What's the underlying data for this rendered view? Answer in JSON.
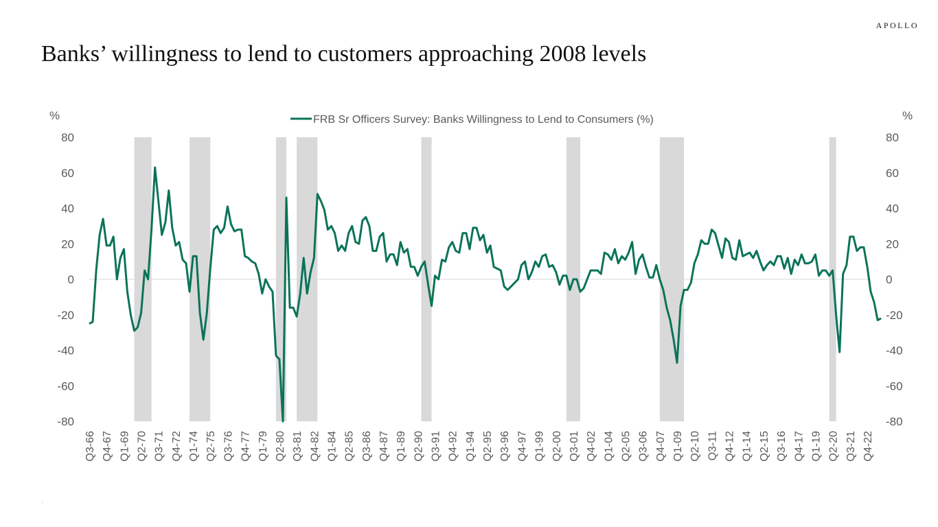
{
  "header": {
    "brand": "APOLLO",
    "title": "Banks’ willingness to lend to customers approaching 2008 levels"
  },
  "footnote": ".",
  "colors": {
    "series": "#0a7358",
    "recession": "#d9d9d9",
    "zero_line": "#d9d9d9",
    "text": "#595959"
  },
  "chart_data": {
    "type": "line",
    "title": "Banks’ willingness to lend to customers approaching 2008 levels",
    "y_unit_left": "%",
    "y_unit_right": "%",
    "ylim": [
      -80,
      80
    ],
    "yticks": [
      80,
      60,
      40,
      20,
      0,
      -20,
      -40,
      -60,
      -80
    ],
    "grid": false,
    "legend": "top-center",
    "xlim": [
      "Q3-66",
      "Q1-23"
    ],
    "xtick_labels": [
      "Q3-66",
      "Q4-67",
      "Q1-69",
      "Q2-70",
      "Q3-71",
      "Q4-72",
      "Q1-74",
      "Q2-75",
      "Q3-76",
      "Q4-77",
      "Q1-79",
      "Q2-80",
      "Q3-81",
      "Q4-82",
      "Q1-84",
      "Q2-85",
      "Q3-86",
      "Q4-87",
      "Q1-89",
      "Q2-90",
      "Q3-91",
      "Q4-92",
      "Q1-94",
      "Q2-95",
      "Q3-96",
      "Q4-97",
      "Q1-99",
      "Q2-00",
      "Q3-01",
      "Q4-02",
      "Q1-04",
      "Q2-05",
      "Q3-06",
      "Q4-07",
      "Q1-09",
      "Q2-10",
      "Q3-11",
      "Q4-12",
      "Q1-14",
      "Q2-15",
      "Q3-16",
      "Q4-17",
      "Q1-19",
      "Q2-20",
      "Q3-21",
      "Q4-22"
    ],
    "recession_shading": [
      [
        "Q4-69",
        "Q4-70"
      ],
      [
        "Q4-73",
        "Q1-75"
      ],
      [
        "Q1-80",
        "Q3-80"
      ],
      [
        "Q3-81",
        "Q4-82"
      ],
      [
        "Q3-90",
        "Q1-91"
      ],
      [
        "Q1-01",
        "Q4-01"
      ],
      [
        "Q4-07",
        "Q2-09"
      ],
      [
        "Q1-20",
        "Q2-20"
      ]
    ],
    "series": [
      {
        "name": "FRB Sr Officers Survey: Banks Willingness to Lend to Consumers (%)",
        "points": [
          [
            "Q3-66",
            -25
          ],
          [
            "Q4-66",
            -24
          ],
          [
            "Q1-67",
            5
          ],
          [
            "Q2-67",
            25
          ],
          [
            "Q3-67",
            34
          ],
          [
            "Q4-67",
            19
          ],
          [
            "Q1-68",
            19
          ],
          [
            "Q2-68",
            24
          ],
          [
            "Q3-68",
            0
          ],
          [
            "Q4-68",
            12
          ],
          [
            "Q1-69",
            17
          ],
          [
            "Q2-69",
            -7
          ],
          [
            "Q3-69",
            -20
          ],
          [
            "Q4-69",
            -29
          ],
          [
            "Q1-70",
            -27
          ],
          [
            "Q2-70",
            -19
          ],
          [
            "Q3-70",
            5
          ],
          [
            "Q4-70",
            0
          ],
          [
            "Q1-71",
            28
          ],
          [
            "Q2-71",
            63
          ],
          [
            "Q3-71",
            44
          ],
          [
            "Q4-71",
            25
          ],
          [
            "Q1-72",
            32
          ],
          [
            "Q2-72",
            50
          ],
          [
            "Q3-72",
            29
          ],
          [
            "Q4-72",
            19
          ],
          [
            "Q1-73",
            21
          ],
          [
            "Q2-73",
            11
          ],
          [
            "Q3-73",
            9
          ],
          [
            "Q4-73",
            -7
          ],
          [
            "Q1-74",
            13
          ],
          [
            "Q2-74",
            13
          ],
          [
            "Q3-74",
            -19
          ],
          [
            "Q4-74",
            -34
          ],
          [
            "Q1-75",
            -19
          ],
          [
            "Q2-75",
            6
          ],
          [
            "Q3-75",
            28
          ],
          [
            "Q4-75",
            30
          ],
          [
            "Q1-76",
            26
          ],
          [
            "Q2-76",
            29
          ],
          [
            "Q3-76",
            41
          ],
          [
            "Q4-76",
            31
          ],
          [
            "Q1-77",
            27
          ],
          [
            "Q2-77",
            28
          ],
          [
            "Q3-77",
            28
          ],
          [
            "Q4-77",
            13
          ],
          [
            "Q1-78",
            12
          ],
          [
            "Q2-78",
            10
          ],
          [
            "Q3-78",
            9
          ],
          [
            "Q4-78",
            3
          ],
          [
            "Q1-79",
            -8
          ],
          [
            "Q2-79",
            0
          ],
          [
            "Q3-79",
            -4
          ],
          [
            "Q4-79",
            -7
          ],
          [
            "Q1-80",
            -43
          ],
          [
            "Q2-80",
            -45
          ],
          [
            "Q3-80",
            -80
          ],
          [
            "Q4-80",
            46
          ],
          [
            "Q1-81",
            -16
          ],
          [
            "Q2-81",
            -16
          ],
          [
            "Q3-81",
            -21
          ],
          [
            "Q4-81",
            -8
          ],
          [
            "Q1-82",
            12
          ],
          [
            "Q2-82",
            -8
          ],
          [
            "Q3-82",
            4
          ],
          [
            "Q4-82",
            12
          ],
          [
            "Q1-83",
            48
          ],
          [
            "Q2-83",
            44
          ],
          [
            "Q3-83",
            39
          ],
          [
            "Q4-83",
            28
          ],
          [
            "Q1-84",
            30
          ],
          [
            "Q2-84",
            26
          ],
          [
            "Q3-84",
            16
          ],
          [
            "Q4-84",
            19
          ],
          [
            "Q1-85",
            16
          ],
          [
            "Q2-85",
            26
          ],
          [
            "Q3-85",
            30
          ],
          [
            "Q4-85",
            21
          ],
          [
            "Q1-86",
            20
          ],
          [
            "Q2-86",
            33
          ],
          [
            "Q3-86",
            35
          ],
          [
            "Q4-86",
            30
          ],
          [
            "Q1-87",
            16
          ],
          [
            "Q2-87",
            16
          ],
          [
            "Q3-87",
            24
          ],
          [
            "Q4-87",
            26
          ],
          [
            "Q1-88",
            10
          ],
          [
            "Q2-88",
            14
          ],
          [
            "Q3-88",
            14
          ],
          [
            "Q4-88",
            8
          ],
          [
            "Q1-89",
            21
          ],
          [
            "Q2-89",
            15
          ],
          [
            "Q3-89",
            17
          ],
          [
            "Q4-89",
            7
          ],
          [
            "Q1-90",
            7
          ],
          [
            "Q2-90",
            2
          ],
          [
            "Q3-90",
            7
          ],
          [
            "Q4-90",
            10
          ],
          [
            "Q1-91",
            -3
          ],
          [
            "Q2-91",
            -15
          ],
          [
            "Q3-91",
            2
          ],
          [
            "Q4-91",
            0
          ],
          [
            "Q1-92",
            11
          ],
          [
            "Q2-92",
            10
          ],
          [
            "Q3-92",
            18
          ],
          [
            "Q4-92",
            21
          ],
          [
            "Q1-93",
            16
          ],
          [
            "Q2-93",
            15
          ],
          [
            "Q3-93",
            26
          ],
          [
            "Q4-93",
            26
          ],
          [
            "Q1-94",
            17
          ],
          [
            "Q2-94",
            29
          ],
          [
            "Q3-94",
            29
          ],
          [
            "Q4-94",
            22
          ],
          [
            "Q1-95",
            25
          ],
          [
            "Q2-95",
            15
          ],
          [
            "Q3-95",
            19
          ],
          [
            "Q4-95",
            7
          ],
          [
            "Q1-96",
            6
          ],
          [
            "Q2-96",
            5
          ],
          [
            "Q3-96",
            -4
          ],
          [
            "Q4-96",
            -6
          ],
          [
            "Q1-97",
            -4
          ],
          [
            "Q2-97",
            -2
          ],
          [
            "Q3-97",
            0
          ],
          [
            "Q4-97",
            8
          ],
          [
            "Q1-98",
            10
          ],
          [
            "Q2-98",
            0
          ],
          [
            "Q3-98",
            4
          ],
          [
            "Q4-98",
            10
          ],
          [
            "Q1-99",
            7
          ],
          [
            "Q2-99",
            13
          ],
          [
            "Q3-99",
            14
          ],
          [
            "Q4-99",
            7
          ],
          [
            "Q1-00",
            8
          ],
          [
            "Q2-00",
            4
          ],
          [
            "Q3-00",
            -3
          ],
          [
            "Q4-00",
            2
          ],
          [
            "Q1-01",
            2
          ],
          [
            "Q2-01",
            -6
          ],
          [
            "Q3-01",
            0
          ],
          [
            "Q4-01",
            0
          ],
          [
            "Q1-02",
            -7
          ],
          [
            "Q2-02",
            -5
          ],
          [
            "Q3-02",
            0
          ],
          [
            "Q4-02",
            5
          ],
          [
            "Q1-03",
            5
          ],
          [
            "Q2-03",
            5
          ],
          [
            "Q3-03",
            3
          ],
          [
            "Q4-03",
            15
          ],
          [
            "Q1-04",
            14
          ],
          [
            "Q2-04",
            11
          ],
          [
            "Q3-04",
            17
          ],
          [
            "Q4-04",
            9
          ],
          [
            "Q1-05",
            13
          ],
          [
            "Q2-05",
            11
          ],
          [
            "Q3-05",
            15
          ],
          [
            "Q4-05",
            21
          ],
          [
            "Q1-06",
            3
          ],
          [
            "Q2-06",
            11
          ],
          [
            "Q3-06",
            14
          ],
          [
            "Q4-06",
            7
          ],
          [
            "Q1-07",
            1
          ],
          [
            "Q2-07",
            1
          ],
          [
            "Q3-07",
            8
          ],
          [
            "Q4-07",
            0
          ],
          [
            "Q1-08",
            -6
          ],
          [
            "Q2-08",
            -16
          ],
          [
            "Q3-08",
            -23
          ],
          [
            "Q4-08",
            -34
          ],
          [
            "Q1-09",
            -47
          ],
          [
            "Q2-09",
            -15
          ],
          [
            "Q3-09",
            -6
          ],
          [
            "Q4-09",
            -6
          ],
          [
            "Q1-10",
            -2
          ],
          [
            "Q2-10",
            9
          ],
          [
            "Q3-10",
            14
          ],
          [
            "Q4-10",
            22
          ],
          [
            "Q1-11",
            20
          ],
          [
            "Q2-11",
            20
          ],
          [
            "Q3-11",
            28
          ],
          [
            "Q4-11",
            26
          ],
          [
            "Q1-12",
            19
          ],
          [
            "Q2-12",
            12
          ],
          [
            "Q3-12",
            23
          ],
          [
            "Q4-12",
            21
          ],
          [
            "Q1-13",
            12
          ],
          [
            "Q2-13",
            11
          ],
          [
            "Q3-13",
            22
          ],
          [
            "Q4-13",
            13
          ],
          [
            "Q1-14",
            14
          ],
          [
            "Q2-14",
            15
          ],
          [
            "Q3-14",
            12
          ],
          [
            "Q4-14",
            16
          ],
          [
            "Q1-15",
            10
          ],
          [
            "Q2-15",
            5
          ],
          [
            "Q3-15",
            8
          ],
          [
            "Q4-15",
            10
          ],
          [
            "Q1-16",
            8
          ],
          [
            "Q2-16",
            13
          ],
          [
            "Q3-16",
            13
          ],
          [
            "Q4-16",
            6
          ],
          [
            "Q1-17",
            12
          ],
          [
            "Q2-17",
            3
          ],
          [
            "Q3-17",
            11
          ],
          [
            "Q4-17",
            8
          ],
          [
            "Q1-18",
            14
          ],
          [
            "Q2-18",
            9
          ],
          [
            "Q3-18",
            9
          ],
          [
            "Q4-18",
            10
          ],
          [
            "Q1-19",
            14
          ],
          [
            "Q2-19",
            2
          ],
          [
            "Q3-19",
            5
          ],
          [
            "Q4-19",
            5
          ],
          [
            "Q1-20",
            2
          ],
          [
            "Q2-20",
            5
          ],
          [
            "Q3-20",
            -20
          ],
          [
            "Q4-20",
            -41
          ],
          [
            "Q1-21",
            3
          ],
          [
            "Q2-21",
            8
          ],
          [
            "Q3-21",
            24
          ],
          [
            "Q4-21",
            24
          ],
          [
            "Q1-22",
            16
          ],
          [
            "Q2-22",
            18
          ],
          [
            "Q3-22",
            18
          ],
          [
            "Q4-22",
            7
          ],
          [
            "Q1-23",
            -7
          ],
          [
            "Q2-23",
            -13
          ],
          [
            "Q3-23",
            -23
          ],
          [
            "Q4-23",
            -22
          ]
        ]
      }
    ]
  }
}
